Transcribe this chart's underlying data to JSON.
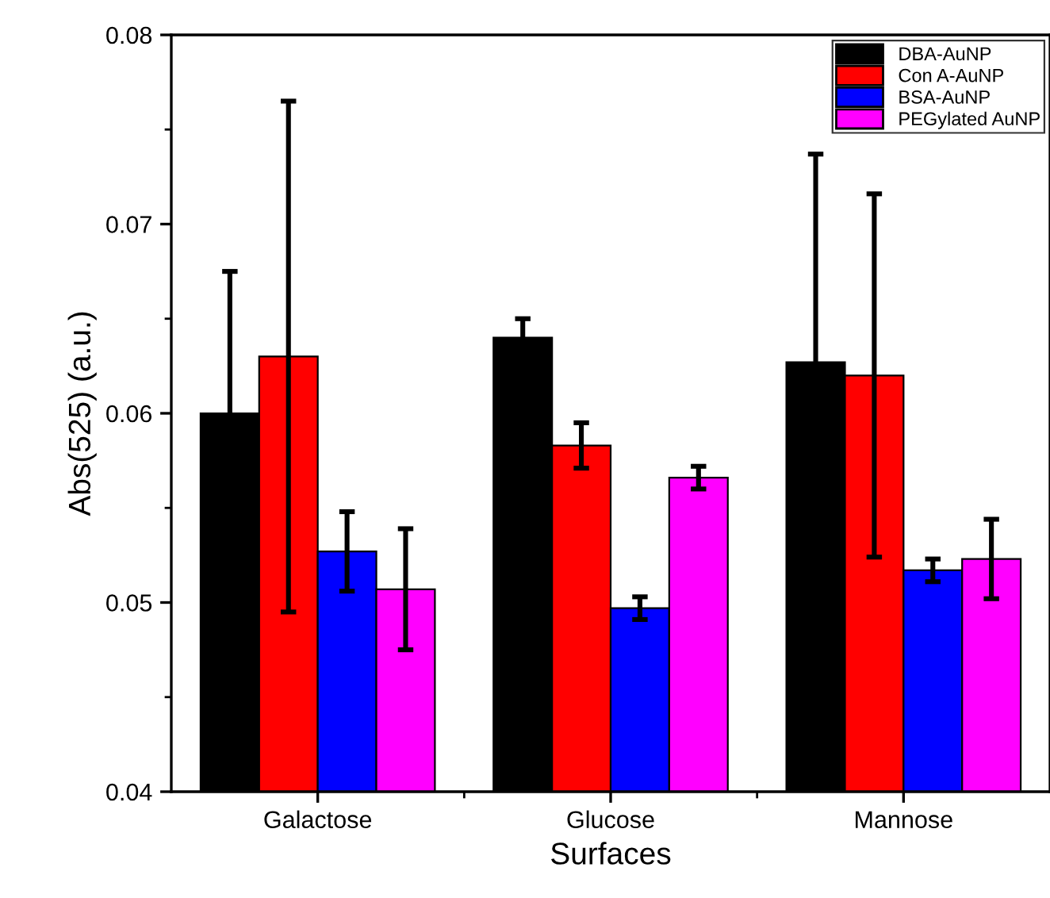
{
  "chart_data": {
    "type": "bar",
    "xlabel": "Surfaces",
    "ylabel": "Abs(525) (a.u.)",
    "categories": [
      "Galactose",
      "Glucose",
      "Mannose"
    ],
    "series": [
      {
        "name": "DBA-AuNP",
        "color": "#000000",
        "values": [
          0.06,
          0.064,
          0.0627
        ],
        "errors": [
          0.0075,
          0.001,
          0.011
        ]
      },
      {
        "name": "Con A-AuNP",
        "color": "#ff0000",
        "values": [
          0.063,
          0.0583,
          0.062
        ],
        "errors": [
          0.0135,
          0.0012,
          0.0096
        ]
      },
      {
        "name": "BSA-AuNP",
        "color": "#0000ff",
        "values": [
          0.0527,
          0.0497,
          0.0517
        ],
        "errors": [
          0.0021,
          0.0006,
          0.0006
        ]
      },
      {
        "name": "PEGylated AuNP",
        "color": "#ff00ff",
        "values": [
          0.0507,
          0.0566,
          0.0523
        ],
        "errors": [
          0.0032,
          0.0006,
          0.0021
        ]
      }
    ],
    "ylim": [
      0.04,
      0.08
    ],
    "yticks": [
      {
        "value": 0.04,
        "label": "0.04"
      },
      {
        "value": 0.05,
        "label": "0.05"
      },
      {
        "value": 0.06,
        "label": "0.06"
      },
      {
        "value": 0.07,
        "label": "0.07"
      },
      {
        "value": 0.08,
        "label": "0.08"
      }
    ],
    "grid": false,
    "legend": "top right"
  }
}
